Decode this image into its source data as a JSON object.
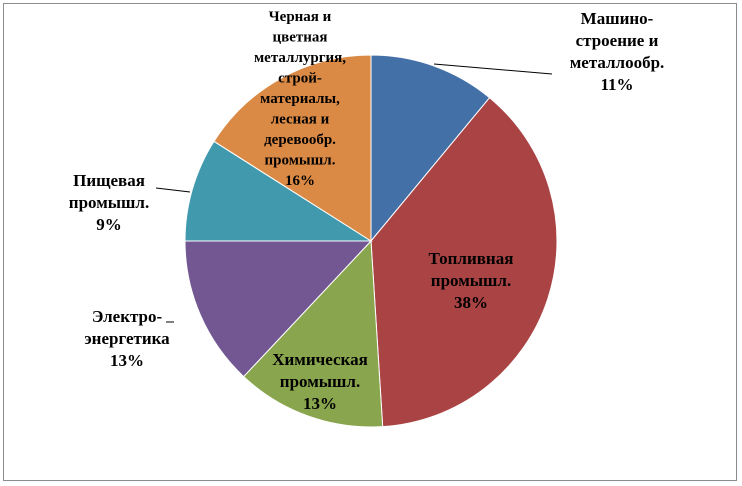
{
  "chart_data": {
    "type": "pie",
    "title": "",
    "start_angle_deg": 0,
    "direction": "clockwise",
    "legend": "none",
    "slices": [
      {
        "lines": [
          "Машино-",
          "строение и",
          "металлообр."
        ],
        "percent_label": "11%",
        "value": 11,
        "color": "#4470a8"
      },
      {
        "lines": [
          "Топливная",
          "промышл."
        ],
        "percent_label": "38%",
        "value": 38,
        "color": "#aa4343"
      },
      {
        "lines": [
          "Химическая",
          "промышл."
        ],
        "percent_label": "13%",
        "value": 13,
        "color": "#89a54d"
      },
      {
        "lines": [
          "Электро-",
          "энергетика"
        ],
        "percent_label": "13%",
        "value": 13,
        "color": "#725792"
      },
      {
        "lines": [
          "Пищевая",
          "промышл."
        ],
        "percent_label": "9%",
        "value": 9,
        "color": "#4199ae"
      },
      {
        "lines": [
          "Черная и",
          "цветная",
          "металлургия,",
          "строй-",
          "материалы,",
          "лесная и",
          "деревообр.",
          "промышл."
        ],
        "percent_label": "16%",
        "value": 16,
        "color": "#db8a45"
      }
    ]
  }
}
